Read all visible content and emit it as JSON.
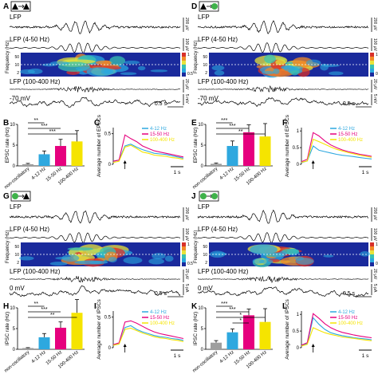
{
  "panels": {
    "A": {
      "letter": "A",
      "pre": "triangle",
      "post": "triangle",
      "traces": {
        "lfp": "LFP",
        "lfp_filt": "LFP (4-50 Hz)",
        "lfp_hf": "LFP (100-400 Hz)",
        "vm": "-70 mV"
      },
      "scales": {
        "lfp": "200 μV",
        "lfp_filt": "100 μV",
        "lfp_hf": "20 μV",
        "vm": "5 mV",
        "time": "0.5 s"
      },
      "spec": {
        "ylabel": "Frequency (Hz)",
        "ticks": [
          "50",
          "10",
          "2"
        ]
      }
    },
    "D": {
      "letter": "D",
      "pre": "triangle",
      "post": "circle",
      "traces": {
        "lfp": "LFP",
        "lfp_filt": "LFP (4-50 Hz)",
        "lfp_hf": "LFP (100-400 Hz)",
        "vm": "-70 mV"
      },
      "scales": {
        "lfp": "200 μV",
        "lfp_filt": "100 μV",
        "lfp_hf": "20 μV",
        "vm": "5 mV",
        "time": "0.5 s"
      },
      "spec": {
        "ylabel": "Frequency (Hz)",
        "ticks": [
          "50",
          "10",
          "2"
        ]
      }
    },
    "G": {
      "letter": "G",
      "pre": "circle",
      "post": "triangle",
      "traces": {
        "lfp": "LFP",
        "lfp_filt": "LFP (4-50 Hz)",
        "lfp_hf": "LFP (100-400 Hz)",
        "vm": "0 mV"
      },
      "scales": {
        "lfp": "200 μV",
        "lfp_filt": "100 μV",
        "lfp_hf": "20 μV",
        "vm": "5 pA",
        "time": "0.5 s"
      },
      "spec": {
        "ylabel": "Frequency (Hz)",
        "ticks": [
          "50",
          "10",
          "2"
        ]
      }
    },
    "J": {
      "letter": "J",
      "pre": "circle",
      "post": "circle",
      "traces": {
        "lfp": "LFP",
        "lfp_filt": "LFP (4-50 Hz)",
        "lfp_hf": "LFP (100-400 Hz)",
        "vm": "0 mV"
      },
      "scales": {
        "lfp": "200 μV",
        "lfp_filt": "100 μV",
        "lfp_hf": "20 μV",
        "vm": "5 pA",
        "time": "0.5 s"
      },
      "spec": {
        "ylabel": "Frequency (Hz)",
        "ticks": [
          "50",
          "10",
          "2"
        ]
      }
    }
  },
  "colorbar": {
    "ticks": [
      "1",
      "0.5"
    ]
  },
  "colors": {
    "blue": "#2ea8df",
    "magenta": "#e6007e",
    "yellow": "#f5e400",
    "grey": "#9e9e9e",
    "pv_green": "#3fb24a",
    "trace": "#000000"
  },
  "bar_legend": [
    "4-12 Hz",
    "15-50 Hz",
    "100-400 Hz"
  ],
  "chart_data": [
    {
      "id": "B",
      "type": "bar",
      "ylabel": "EPSC rate (Hz)",
      "ylim": [
        0,
        10
      ],
      "yticks": [
        0,
        5,
        10
      ],
      "categories": [
        "non-oscillatory",
        "4-12 Hz",
        "15-50 Hz",
        "100-400 Hz"
      ],
      "values": [
        0.4,
        2.8,
        4.8,
        5.9
      ],
      "errors": [
        0.2,
        0.8,
        1.6,
        2.6
      ],
      "sig": [
        {
          "a": 0,
          "b": 1,
          "label": "**"
        },
        {
          "a": 0,
          "b": 2,
          "label": "***"
        },
        {
          "a": 0,
          "b": 3,
          "label": "***"
        }
      ]
    },
    {
      "id": "C",
      "type": "line",
      "ylabel": "Average number of EPSCs",
      "ylim": [
        0,
        0.6
      ],
      "yticks": [
        0,
        0.5
      ],
      "time_scale": "1 s",
      "x": [
        0,
        0.25,
        0.5,
        0.75,
        1,
        1.25,
        1.5,
        1.75,
        2,
        2.25,
        2.5,
        2.75,
        3
      ],
      "series": [
        {
          "name": "4-12 Hz",
          "color": "#2ea8df",
          "values": [
            0.05,
            0.07,
            0.3,
            0.33,
            0.28,
            0.24,
            0.21,
            0.18,
            0.17,
            0.16,
            0.14,
            0.12,
            0.1
          ]
        },
        {
          "name": "15-50 Hz",
          "color": "#e6007e",
          "values": [
            0.05,
            0.07,
            0.48,
            0.42,
            0.37,
            0.3,
            0.26,
            0.22,
            0.2,
            0.18,
            0.16,
            0.14,
            0.12
          ]
        },
        {
          "name": "100-400 Hz",
          "color": "#f5e400",
          "values": [
            0.03,
            0.05,
            0.28,
            0.31,
            0.26,
            0.2,
            0.18,
            0.15,
            0.14,
            0.13,
            0.11,
            0.1,
            0.08
          ]
        }
      ]
    },
    {
      "id": "E",
      "type": "bar",
      "ylabel": "EPSC rate (Hz)",
      "ylim": [
        0,
        10
      ],
      "yticks": [
        0,
        5,
        10
      ],
      "categories": [
        "non-oscillatory",
        "4-12 Hz",
        "15-50 Hz",
        "100-400 Hz"
      ],
      "values": [
        0.5,
        4.8,
        8.1,
        7.1
      ],
      "errors": [
        0.2,
        1.2,
        1.8,
        3.1
      ],
      "sig": [
        {
          "a": 0,
          "b": 1,
          "label": "***"
        },
        {
          "a": 0,
          "b": 2,
          "label": "***"
        },
        {
          "a": 0,
          "b": 3,
          "label": "**"
        }
      ]
    },
    {
      "id": "F",
      "type": "line",
      "ylabel": "Average number of EPSCs",
      "ylim": [
        0,
        1.1
      ],
      "yticks": [
        0,
        0.5,
        1
      ],
      "time_scale": "1 s",
      "x": [
        0,
        0.25,
        0.5,
        0.75,
        1,
        1.25,
        1.5,
        1.75,
        2,
        2.25,
        2.5,
        2.75,
        3
      ],
      "series": [
        {
          "name": "4-12 Hz",
          "color": "#2ea8df",
          "values": [
            0.05,
            0.1,
            0.55,
            0.42,
            0.38,
            0.34,
            0.3,
            0.27,
            0.25,
            0.23,
            0.2,
            0.18,
            0.16
          ]
        },
        {
          "name": "15-50 Hz",
          "color": "#e6007e",
          "values": [
            0.08,
            0.15,
            0.95,
            0.85,
            0.7,
            0.58,
            0.5,
            0.43,
            0.38,
            0.34,
            0.3,
            0.27,
            0.24
          ]
        },
        {
          "name": "100-400 Hz",
          "color": "#f5e400",
          "values": [
            0.06,
            0.1,
            0.75,
            0.68,
            0.6,
            0.52,
            0.45,
            0.4,
            0.35,
            0.31,
            0.27,
            0.24,
            0.21
          ]
        }
      ]
    },
    {
      "id": "H",
      "type": "bar",
      "ylabel": "IPSC rate (Hz)",
      "ylim": [
        0,
        10
      ],
      "yticks": [
        0,
        5,
        10
      ],
      "categories": [
        "non-oscillatory",
        "4-12 Hz",
        "15-50 Hz",
        "100-400 Hz"
      ],
      "values": [
        0.3,
        2.9,
        5.2,
        8.8
      ],
      "errors": [
        0.1,
        0.9,
        1.4,
        3.2
      ],
      "sig": [
        {
          "a": 0,
          "b": 1,
          "label": "**"
        },
        {
          "a": 0,
          "b": 2,
          "label": "***"
        },
        {
          "a": 0,
          "b": 3,
          "label": "**"
        }
      ]
    },
    {
      "id": "I",
      "type": "line",
      "ylabel": "Average number of IPSCs",
      "ylim": [
        0,
        0.6
      ],
      "yticks": [
        0,
        0.5
      ],
      "time_scale": "1 s",
      "x": [
        0,
        0.25,
        0.5,
        0.75,
        1,
        1.25,
        1.5,
        1.75,
        2,
        2.25,
        2.5,
        2.75,
        3
      ],
      "series": [
        {
          "name": "4-12 Hz",
          "color": "#2ea8df",
          "values": [
            0.04,
            0.06,
            0.33,
            0.36,
            0.3,
            0.26,
            0.23,
            0.2,
            0.18,
            0.17,
            0.15,
            0.14,
            0.12
          ]
        },
        {
          "name": "15-50 Hz",
          "color": "#e6007e",
          "values": [
            0.05,
            0.08,
            0.42,
            0.44,
            0.4,
            0.35,
            0.3,
            0.26,
            0.23,
            0.21,
            0.19,
            0.17,
            0.15
          ]
        },
        {
          "name": "100-400 Hz",
          "color": "#f5e400",
          "values": [
            0.04,
            0.06,
            0.3,
            0.32,
            0.28,
            0.24,
            0.21,
            0.18,
            0.16,
            0.15,
            0.13,
            0.12,
            0.1
          ]
        }
      ]
    },
    {
      "id": "K",
      "type": "bar",
      "ylabel": "IPSC rate (Hz)",
      "ylim": [
        0,
        10
      ],
      "yticks": [
        0,
        5,
        10
      ],
      "categories": [
        "non-oscillatory",
        "4-12 Hz",
        "15-50 Hz",
        "100-400 Hz"
      ],
      "values": [
        1.6,
        4.1,
        8.2,
        6.6
      ],
      "errors": [
        0.5,
        0.8,
        1.5,
        3.2
      ],
      "sig": [
        {
          "a": 0,
          "b": 1,
          "label": "***"
        },
        {
          "a": 0,
          "b": 2,
          "label": "***"
        },
        {
          "a": 0,
          "b": 3,
          "label": "*"
        },
        {
          "a": 1,
          "b": 2,
          "label": "*"
        }
      ]
    },
    {
      "id": "L",
      "type": "line",
      "ylabel": "Average number of IPSCs",
      "ylim": [
        0,
        1.1
      ],
      "yticks": [
        0,
        0.5,
        1
      ],
      "time_scale": "1 s",
      "x": [
        0,
        0.25,
        0.5,
        0.75,
        1,
        1.25,
        1.5,
        1.75,
        2,
        2.25,
        2.5,
        2.75,
        3
      ],
      "series": [
        {
          "name": "4-12 Hz",
          "color": "#2ea8df",
          "values": [
            0.06,
            0.12,
            0.9,
            0.7,
            0.55,
            0.45,
            0.4,
            0.36,
            0.33,
            0.3,
            0.28,
            0.26,
            0.24
          ]
        },
        {
          "name": "15-50 Hz",
          "color": "#e6007e",
          "values": [
            0.08,
            0.15,
            1.02,
            0.88,
            0.72,
            0.6,
            0.52,
            0.46,
            0.42,
            0.38,
            0.35,
            0.32,
            0.3
          ]
        },
        {
          "name": "100-400 Hz",
          "color": "#f5e400",
          "values": [
            0.05,
            0.1,
            0.6,
            0.52,
            0.45,
            0.4,
            0.36,
            0.32,
            0.3,
            0.28,
            0.25,
            0.23,
            0.21
          ]
        }
      ]
    }
  ]
}
